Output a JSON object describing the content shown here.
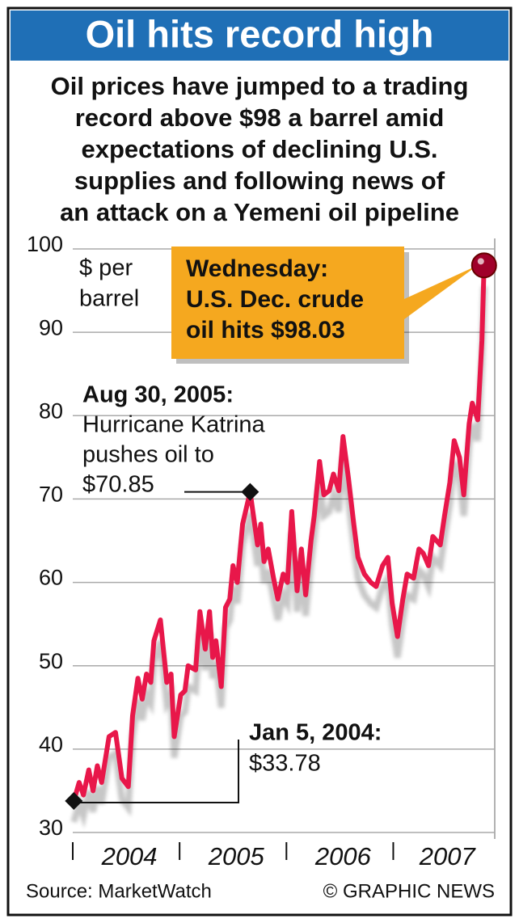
{
  "chart_data": {
    "type": "line",
    "title": "Oil hits record high",
    "subtitle": [
      "Oil prices have jumped to a trading",
      "record above $98 a barrel amid",
      "expectations of declining U.S.",
      "supplies and following news of",
      "an attack on a Yemeni oil pipeline"
    ],
    "y_label": [
      "$ per",
      "barrel"
    ],
    "x": [
      2004.01,
      2004.06,
      2004.1,
      2004.15,
      2004.19,
      2004.23,
      2004.27,
      2004.34,
      2004.4,
      2004.46,
      2004.52,
      2004.56,
      2004.61,
      2004.65,
      2004.69,
      2004.73,
      2004.76,
      2004.82,
      2004.88,
      2004.92,
      2004.95,
      2005.01,
      2005.05,
      2005.08,
      2005.15,
      2005.19,
      2005.24,
      2005.28,
      2005.31,
      2005.34,
      2005.39,
      2005.43,
      2005.47,
      2005.5,
      2005.54,
      2005.59,
      2005.66,
      2005.73,
      2005.76,
      2005.79,
      2005.83,
      2005.88,
      2005.92,
      2005.97,
      2006.01,
      2006.05,
      2006.1,
      2006.14,
      2006.18,
      2006.23,
      2006.26,
      2006.31,
      2006.35,
      2006.4,
      2006.44,
      2006.49,
      2006.53,
      2006.58,
      2006.63,
      2006.67,
      2006.73,
      2006.79,
      2006.84,
      2006.9,
      2006.95,
      2006.99,
      2007.04,
      2007.09,
      2007.13,
      2007.19,
      2007.24,
      2007.28,
      2007.33,
      2007.37,
      2007.44,
      2007.48,
      2007.53,
      2007.57,
      2007.62,
      2007.66,
      2007.71,
      2007.74,
      2007.79,
      2007.83,
      2007.85
    ],
    "values": [
      33.78,
      36,
      34.5,
      37.5,
      35,
      38,
      36,
      41.5,
      42,
      36.5,
      35.5,
      44,
      48.5,
      46,
      49,
      48,
      53,
      55.5,
      48,
      49,
      41.5,
      46.5,
      47,
      50,
      49.5,
      56.5,
      52,
      56.5,
      51,
      53,
      47.5,
      57,
      58,
      62,
      60,
      67,
      70.85,
      64.5,
      67,
      62.5,
      64,
      60.5,
      58,
      61,
      60,
      68.5,
      59,
      64,
      58.5,
      65,
      68,
      74.5,
      70.5,
      71,
      73,
      71,
      77.5,
      72.5,
      67,
      63,
      61,
      60,
      59.5,
      62,
      63,
      57.5,
      53.5,
      58,
      61,
      60.5,
      64,
      63.5,
      62,
      65.5,
      64.5,
      68,
      72,
      77,
      75,
      70.5,
      79,
      81.5,
      79.5,
      89,
      98.03
    ],
    "color": "#e8174a",
    "xlim": [
      2004,
      2007.95
    ],
    "xticks": [
      2004,
      2005,
      2006,
      2007
    ],
    "ylim": [
      30,
      100
    ],
    "yticks": [
      30,
      40,
      50,
      60,
      70,
      80,
      90,
      100
    ],
    "grid": true,
    "annotations": [
      {
        "lines": [
          "Wednesday:",
          "U.S. Dec. crude",
          "oil hits $98.03"
        ]
      },
      {
        "lines": [
          "Aug 30, 2005:",
          "Hurricane Katrina",
          "pushes oil to",
          "$70.85"
        ]
      },
      {
        "lines": [
          "Jan 5, 2004:",
          "$33.78"
        ]
      }
    ],
    "source": "Source: MarketWatch",
    "credit": "© GRAPHIC NEWS"
  }
}
